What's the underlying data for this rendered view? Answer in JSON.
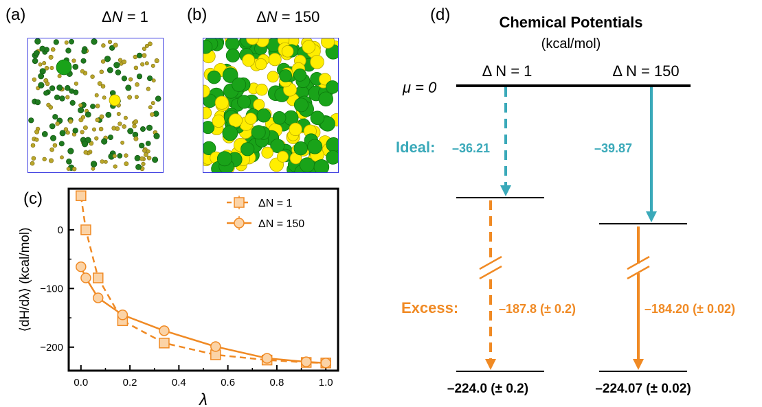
{
  "panel_a": {
    "label": "(a)",
    "title_prefix": "Δ",
    "title_var": "N",
    "title_suffix": " = 1"
  },
  "panel_b": {
    "label": "(b)",
    "title_prefix": "Δ",
    "title_var": "N",
    "title_suffix": " = 150"
  },
  "panel_c": {
    "label": "(c)"
  },
  "panel_d": {
    "label": "(d)",
    "title": "Chemical Potentials",
    "subtitle": "(kcal/mol)",
    "mu_label": "μ = 0",
    "col1_label": "Δ N = 1",
    "col2_label": "Δ N = 150",
    "ideal_label": "Ideal:",
    "excess_label": "Excess:",
    "ideal_1": "–36.21",
    "ideal_2": "–39.87",
    "excess_1": "–187.8 (± 0.2)",
    "excess_2": "–184.20 (± 0.02)",
    "total_1": "–224.0 (± 0.2)",
    "total_2": "–224.07 (± 0.02)"
  },
  "colors": {
    "green": "#19a319",
    "dark_green": "#1f7a1f",
    "yellow": "#ffee00",
    "olive": "#b9a62a",
    "orange": "#f08a24",
    "orange_fill": "#fbd3a6",
    "teal": "#3aa9b9"
  },
  "chart_data": {
    "type": "line",
    "xlabel": "λ",
    "ylabel": "⟨dH/dλ⟩ (kcal/mol)",
    "xlim": [
      -0.05,
      1.05
    ],
    "ylim": [
      -240,
      70
    ],
    "xticks": [
      "0.0",
      "0.2",
      "0.4",
      "0.6",
      "0.8",
      "1.0"
    ],
    "yticks": [
      "0",
      "−100",
      "−200"
    ],
    "legend_position": "top-right",
    "series": [
      {
        "name": "ΔN = 1",
        "marker": "square",
        "dash": "dashed",
        "x": [
          0.0,
          0.02,
          0.07,
          0.17,
          0.34,
          0.55,
          0.76,
          0.92,
          1.0
        ],
        "y": [
          58,
          0,
          -82,
          -155,
          -193,
          -213,
          -222,
          -226,
          -227
        ]
      },
      {
        "name": "ΔN = 150",
        "marker": "circle",
        "dash": "solid",
        "x": [
          0.0,
          0.02,
          0.07,
          0.17,
          0.34,
          0.55,
          0.76,
          0.92,
          1.0
        ],
        "y": [
          -63,
          -82,
          -116,
          -145,
          -172,
          -199,
          -219,
          -225,
          -227
        ]
      }
    ]
  }
}
